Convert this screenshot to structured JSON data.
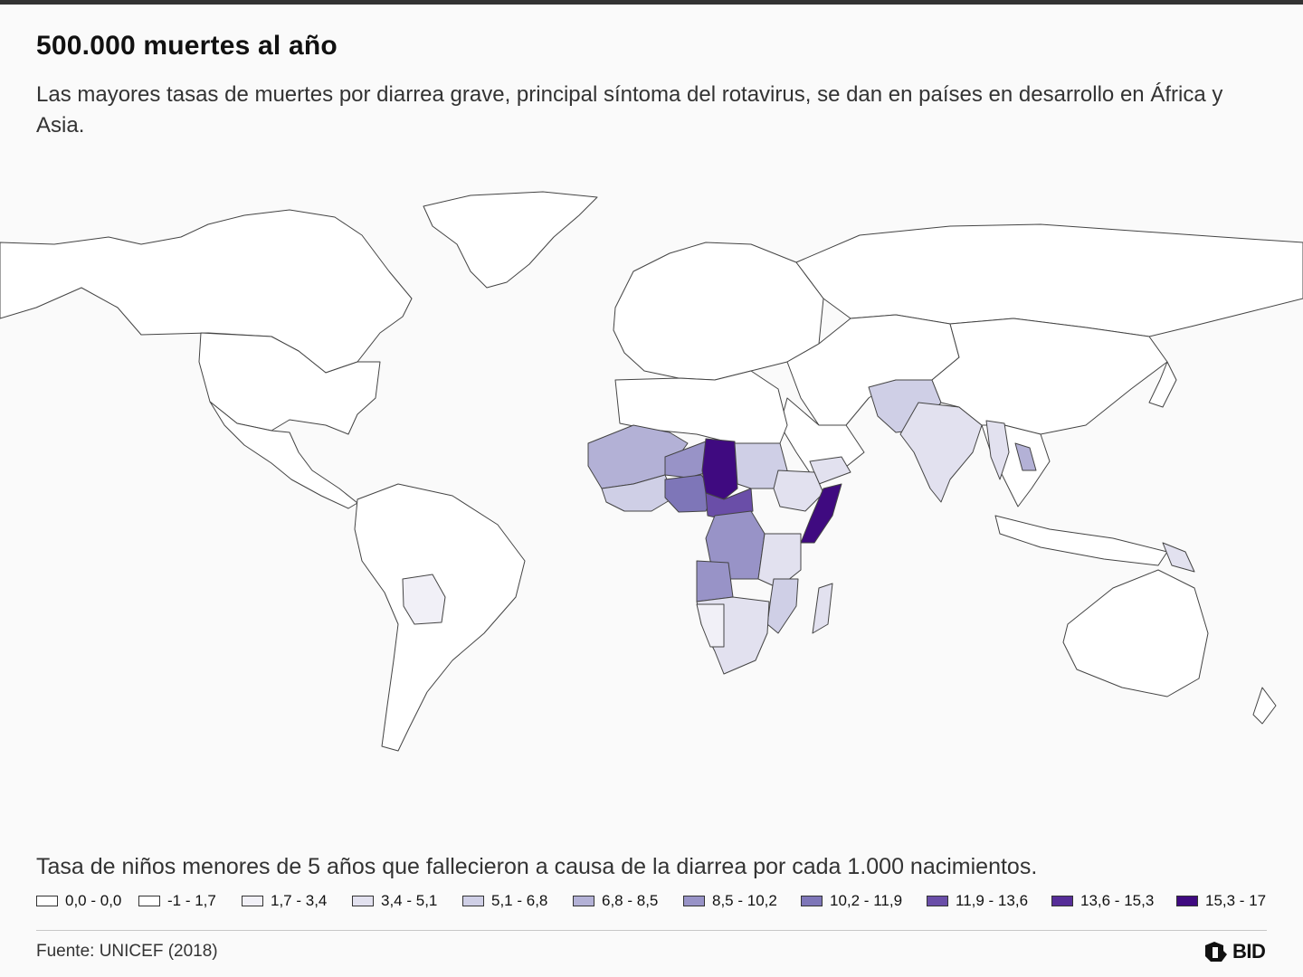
{
  "header": {
    "title": "500.000 muertes al año",
    "subtitle": "Las mayores tasas de muertes por diarrea grave, principal síntoma del rotavirus, se dan en países en desarrollo en África y Asia."
  },
  "legend": {
    "title": "Tasa de niños menores de 5 años que fallecieron a causa de la diarrea por cada 1.000 nacimientos.",
    "items": [
      {
        "label": "0,0 - 0,0",
        "color": "#ffffff"
      },
      {
        "label": "-1 - 1,7",
        "color": "#ffffff"
      },
      {
        "label": "1,7 - 3,4",
        "color": "#f1f0f7"
      },
      {
        "label": "3,4 - 5,1",
        "color": "#e2e1ef"
      },
      {
        "label": "5,1 - 6,8",
        "color": "#cfcfe6"
      },
      {
        "label": "6,8 - 8,5",
        "color": "#b3b1d6"
      },
      {
        "label": "8,5 - 10,2",
        "color": "#9893c7"
      },
      {
        "label": "10,2 - 11,9",
        "color": "#7e76b8"
      },
      {
        "label": "11,9 - 13,6",
        "color": "#6a4ea8"
      },
      {
        "label": "13,6 - 15,3",
        "color": "#562d98"
      },
      {
        "label": "15,3 - 17",
        "color": "#3f0a80"
      }
    ]
  },
  "footer": {
    "source": "Fuente: UNICEF (2018)",
    "logo_text": "BID"
  },
  "map": {
    "land_color": "#ffffff",
    "border_color": "#444444",
    "ocean_color": "#fafafa"
  }
}
